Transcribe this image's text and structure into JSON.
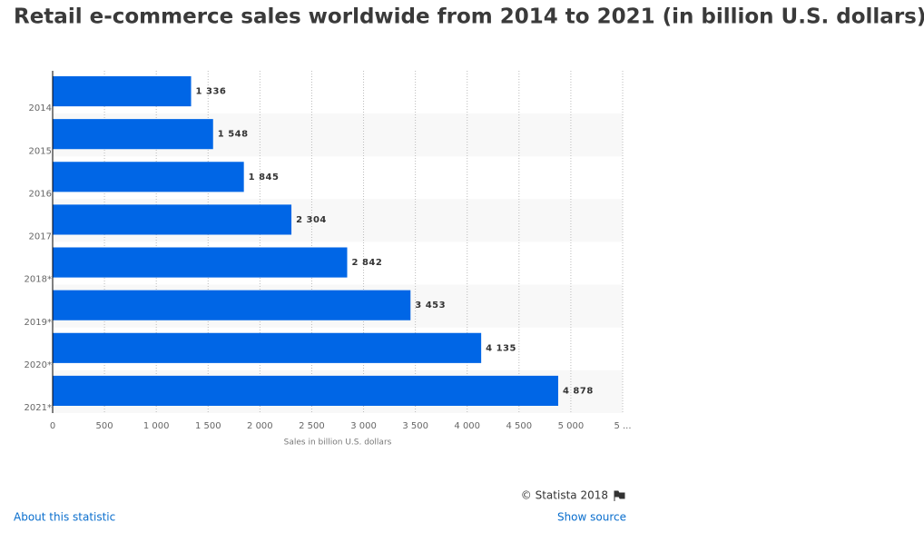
{
  "chart_data": {
    "type": "bar",
    "orientation": "horizontal",
    "title": "Retail e-commerce sales worldwide from 2014 to 2021 (in billion U.S. dollars)",
    "categories": [
      "2014",
      "2015",
      "2016",
      "2017",
      "2018*",
      "2019*",
      "2020*",
      "2021*"
    ],
    "values": [
      1336,
      1548,
      1845,
      2304,
      2842,
      3453,
      4135,
      4878
    ],
    "value_labels": [
      "1 336",
      "1 548",
      "1 845",
      "2 304",
      "2 842",
      "3 453",
      "4 135",
      "4 878"
    ],
    "color": "#0066e6",
    "xlim": [
      0,
      5500
    ],
    "xticks": [
      0,
      500,
      {
        "value": 1000,
        "label": "1 000"
      },
      {
        "value": 1500,
        "label": "1 500"
      },
      {
        "value": 2000,
        "label": "2 000"
      },
      {
        "value": 2500,
        "label": "2 500"
      },
      {
        "value": 3000,
        "label": "3 000"
      },
      {
        "value": 3500,
        "label": "3 500"
      },
      {
        "value": 4000,
        "label": "4 000"
      },
      {
        "value": 4500,
        "label": "4 500"
      },
      {
        "value": 5000,
        "label": "5 000"
      },
      {
        "value": 5500,
        "label": "5 ..."
      }
    ],
    "xlabel": "Sales in billion U.S. dollars",
    "grid": true,
    "credit": "© Statista 2018",
    "links": [
      "About this statistic",
      "Show source"
    ]
  }
}
